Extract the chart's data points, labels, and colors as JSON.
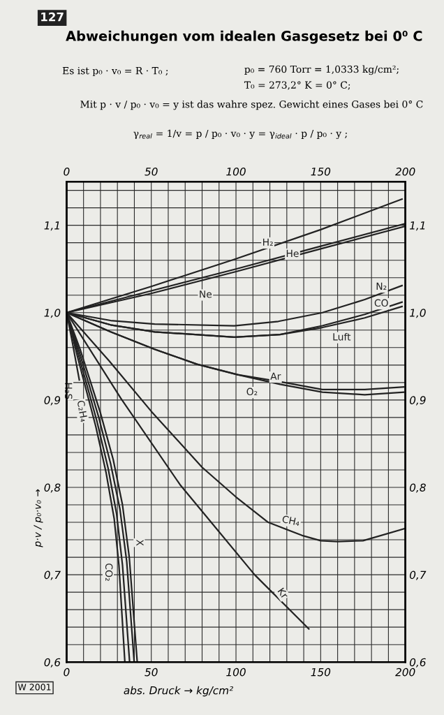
{
  "chart_data": {
    "type": "line",
    "title": "Abweichungen vom idealen Gasgesetz bei 0⁰ C",
    "xlabel": "abs. Druck → kg/cm²",
    "ylabel": "p·v / p₀·v₀ →",
    "annotations": [
      "127",
      "Es ist p₀ · v₀ = R · T₀ ;",
      "p₀ = 760 Torr = 1,0333 kg/cm²;",
      "T₀ = 273,2° K = 0° C;",
      "Mit p · v / p₀ · v₀ = y ist das wahre spez. Gewicht eines Gases bei 0° C",
      "γ$_{real}$ = 1/v = p / p₀ · v₀ · y = γ$_{ideal}$ · p / p₀ · y ;",
      "W 2001"
    ],
    "xlim": [
      0,
      200
    ],
    "ylim": [
      0.6,
      1.15
    ],
    "x2lim": [
      0,
      200
    ],
    "y2lim": [
      0.6,
      1.15
    ],
    "xticks": [
      0,
      {
        "value": 10,
        "label": null
      },
      {
        "value": 20,
        "label": null
      },
      {
        "value": 30,
        "label": null
      },
      {
        "value": 40,
        "label": null
      },
      50,
      {
        "value": 60,
        "label": null
      },
      {
        "value": 70,
        "label": null
      },
      {
        "value": 80,
        "label": null
      },
      {
        "value": 90,
        "label": null
      },
      100,
      {
        "value": 110,
        "label": null
      },
      {
        "value": 120,
        "label": null
      },
      {
        "value": 130,
        "label": null
      },
      {
        "value": 140,
        "label": null
      },
      150,
      {
        "value": 160,
        "label": null
      },
      {
        "value": 170,
        "label": null
      },
      {
        "value": 180,
        "label": null
      },
      {
        "value": 190,
        "label": null
      },
      200
    ],
    "x2ticks": [
      0,
      50,
      100,
      150,
      200
    ],
    "yticks": [
      {
        "value": 0.6,
        "label": "0,6"
      },
      {
        "value": 0.62,
        "label": null
      },
      {
        "value": 0.64,
        "label": null
      },
      {
        "value": 0.66,
        "label": null
      },
      {
        "value": 0.68,
        "label": null
      },
      {
        "value": 0.7,
        "label": "0,7"
      },
      {
        "value": 0.72,
        "label": null
      },
      {
        "value": 0.74,
        "label": null
      },
      {
        "value": 0.76,
        "label": null
      },
      {
        "value": 0.78,
        "label": null
      },
      {
        "value": 0.8,
        "label": "0,8"
      },
      {
        "value": 0.82,
        "label": null
      },
      {
        "value": 0.84,
        "label": null
      },
      {
        "value": 0.86,
        "label": null
      },
      {
        "value": 0.88,
        "label": null
      },
      {
        "value": 0.9,
        "label": "0,9"
      },
      {
        "value": 0.92,
        "label": null
      },
      {
        "value": 0.94,
        "label": null
      },
      {
        "value": 0.96,
        "label": null
      },
      {
        "value": 0.98,
        "label": null
      },
      {
        "value": 1.0,
        "label": "1,0"
      },
      {
        "value": 1.02,
        "label": null
      },
      {
        "value": 1.04,
        "label": null
      },
      {
        "value": 1.06,
        "label": null
      },
      {
        "value": 1.08,
        "label": null
      },
      {
        "value": 1.1,
        "label": "1,1"
      },
      {
        "value": 1.12,
        "label": null
      },
      {
        "value": 1.14,
        "label": null
      }
    ],
    "y2ticks": [
      {
        "value": 0.6,
        "label": "0,6"
      },
      {
        "value": 0.7,
        "label": "0,7"
      },
      {
        "value": 0.8,
        "label": "0,8"
      },
      {
        "value": 0.9,
        "label": "0,9"
      },
      {
        "value": 1.0,
        "label": "1,0"
      },
      {
        "value": 1.1,
        "label": "1,1"
      }
    ],
    "grid": true,
    "marker": "none",
    "line_style": "solid",
    "series": [
      {
        "name": "H₂",
        "color": "#222222",
        "x": [
          0,
          50,
          99,
          150,
          198
        ],
        "values": [
          1.0,
          1.03,
          1.061,
          1.095,
          1.13
        ]
      },
      {
        "name": "He",
        "color": "#222222",
        "x": [
          0,
          50,
          100,
          150,
          200
        ],
        "values": [
          1.0,
          1.025,
          1.05,
          1.076,
          1.102
        ]
      },
      {
        "name": "Ne",
        "color": "#222222",
        "x": [
          0,
          50,
          100,
          150,
          200
        ],
        "values": [
          1.0,
          1.022,
          1.047,
          1.073,
          1.099
        ]
      },
      {
        "name": "N₂",
        "color": "#222222",
        "x": [
          0,
          26,
          52,
          99,
          125,
          151,
          176,
          198
        ],
        "values": [
          1.0,
          0.991,
          0.987,
          0.985,
          0.99,
          1.0,
          1.015,
          1.031
        ]
      },
      {
        "name": "CO",
        "color": "#222222",
        "x": [
          0,
          26,
          52,
          99,
          126,
          151,
          176,
          198
        ],
        "values": [
          1.0,
          0.986,
          0.978,
          0.972,
          0.975,
          0.985,
          0.998,
          1.012
        ]
      },
      {
        "name": "Luft",
        "color": "#222222",
        "x": [
          0,
          26,
          52,
          99,
          126,
          151,
          176,
          198
        ],
        "values": [
          1.0,
          0.986,
          0.978,
          0.972,
          0.975,
          0.983,
          0.994,
          1.007
        ]
      },
      {
        "name": "Ar",
        "color": "#222222",
        "x": [
          0,
          26,
          52,
          77,
          101,
          126,
          151,
          176,
          199
        ],
        "values": [
          1.0,
          0.978,
          0.958,
          0.941,
          0.929,
          0.921,
          0.912,
          0.912,
          0.915
        ]
      },
      {
        "name": "O₂",
        "color": "#222222",
        "x": [
          0,
          26,
          52,
          77,
          101,
          126,
          151,
          176,
          199
        ],
        "values": [
          1.0,
          0.978,
          0.958,
          0.941,
          0.929,
          0.918,
          0.909,
          0.906,
          0.909
        ]
      },
      {
        "name": "CH₄",
        "color": "#222222",
        "x": [
          0,
          25,
          50,
          80,
          100,
          119,
          139,
          150,
          160,
          175,
          200
        ],
        "values": [
          1.0,
          0.945,
          0.887,
          0.823,
          0.789,
          0.76,
          0.745,
          0.739,
          0.738,
          0.739,
          0.753
        ]
      },
      {
        "name": "Kr",
        "color": "#222222",
        "x": [
          0,
          32,
          67,
          111,
          143
        ],
        "values": [
          1.0,
          0.902,
          0.803,
          0.7,
          0.638
        ]
      },
      {
        "name": "H₂S",
        "color": "#222222",
        "x": [
          0,
          3.5,
          7.5
        ],
        "values": [
          1.0,
          0.965,
          0.923
        ]
      },
      {
        "name": "C₂H₄",
        "color": "#222222",
        "x": [
          0,
          7,
          18,
          24.5,
          29.5,
          33,
          37.2
        ],
        "values": [
          1.0,
          0.952,
          0.875,
          0.822,
          0.77,
          0.711,
          0.6
        ]
      },
      {
        "name": "CO₂",
        "color": "#222222",
        "x": [
          0,
          6.5,
          17.2,
          23.3,
          28.1,
          30.9,
          34.4
        ],
        "values": [
          1.0,
          0.949,
          0.87,
          0.817,
          0.764,
          0.711,
          0.6
        ]
      },
      {
        "name": "X",
        "color": "#222222",
        "x": [
          0,
          8,
          20,
          27.5,
          33,
          37,
          41.7
        ],
        "values": [
          1.0,
          0.958,
          0.885,
          0.832,
          0.78,
          0.72,
          0.6
        ]
      },
      {
        "color": "#222222",
        "x": [
          0,
          7.5,
          19,
          26,
          31.5,
          35.5,
          39.9
        ],
        "values": [
          1.0,
          0.955,
          0.88,
          0.827,
          0.775,
          0.715,
          0.6
        ]
      }
    ]
  }
}
